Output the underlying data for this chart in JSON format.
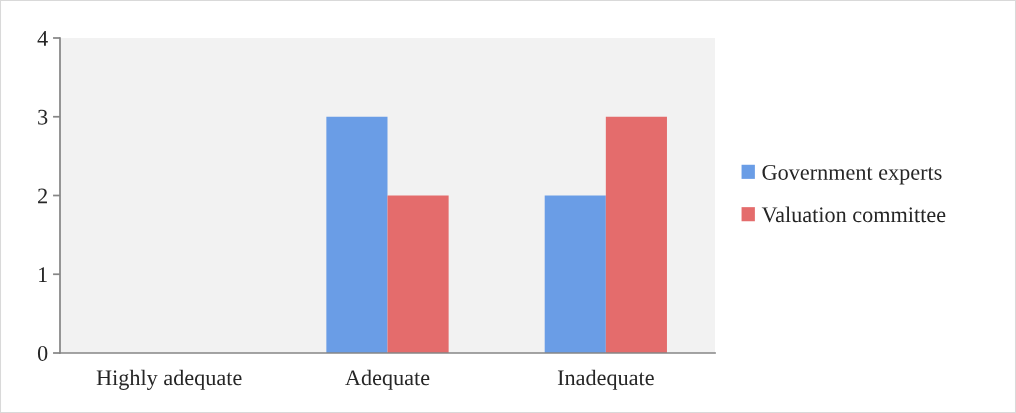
{
  "chart_data": {
    "type": "bar",
    "categories": [
      "Highly adequate",
      "Adequate",
      "Inadequate"
    ],
    "series": [
      {
        "name": "Government experts",
        "color": "#6a9de6",
        "values": [
          0,
          3,
          2
        ]
      },
      {
        "name": "Valuation committee",
        "color": "#e46c6c",
        "values": [
          0,
          2,
          3
        ]
      }
    ],
    "ylim": [
      0,
      4
    ],
    "yticks": [
      0,
      1,
      2,
      3,
      4
    ],
    "grid": false,
    "legend": "right"
  }
}
